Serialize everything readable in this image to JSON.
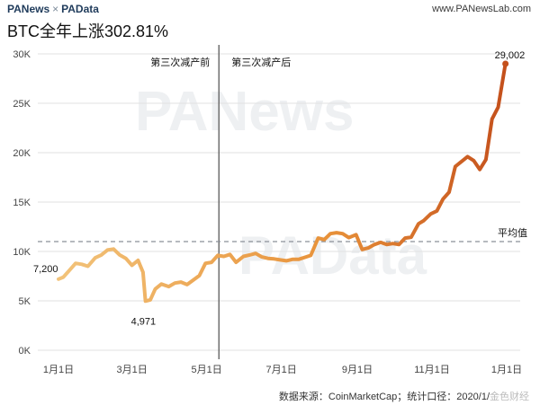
{
  "header": {
    "brand_left": "PANews",
    "brand_sep": "×",
    "brand_right": "PAData",
    "site": "www.PANewsLab.com"
  },
  "footer": {
    "source": "数据来源：CoinMarketCap；统计口径：2020/1/",
    "watermark": "金色财经"
  },
  "watermarks": [
    "PANews",
    "PAData"
  ],
  "chart_data": {
    "type": "line",
    "title": "BTC全年上涨302.81%",
    "xlabel": "",
    "ylabel": "",
    "ylim": [
      0,
      30000
    ],
    "yticks": [
      0,
      5000,
      10000,
      15000,
      20000,
      25000,
      30000
    ],
    "ytick_labels": [
      "0K",
      "5K",
      "10K",
      "15K",
      "20K",
      "25K",
      "30K"
    ],
    "xticks": [
      "2020-01-01",
      "2020-03-01",
      "2020-05-01",
      "2020-07-01",
      "2020-09-01",
      "2020-11-01",
      "2021-01-01"
    ],
    "xtick_labels": [
      "1月1日",
      "3月1日",
      "5月1日",
      "7月1日",
      "9月1日",
      "11月1日",
      "1月1日"
    ],
    "grid": true,
    "reference_line": {
      "y": 11000,
      "label": "平均值",
      "style": "dashed"
    },
    "halving_line": {
      "x": "2020-05-11",
      "label_before": "第三次减产前",
      "label_after": "第三次减产后"
    },
    "annotations": [
      {
        "x": "2020-01-01",
        "y": 7200,
        "label": "7,200"
      },
      {
        "x": "2020-03-12",
        "y": 4971,
        "label": "4,971"
      },
      {
        "x": "2020-12-31",
        "y": 29002,
        "label": "29,002"
      }
    ],
    "color_gradient": [
      "#f2c37a",
      "#e8923a",
      "#c4501c"
    ],
    "series": [
      {
        "x": [
          "2020-01-01",
          "2020-01-05",
          "2020-01-10",
          "2020-01-15",
          "2020-01-20",
          "2020-01-25",
          "2020-01-31",
          "2020-02-05",
          "2020-02-10",
          "2020-02-15",
          "2020-02-20",
          "2020-02-25",
          "2020-03-01",
          "2020-03-06",
          "2020-03-10",
          "2020-03-12",
          "2020-03-16",
          "2020-03-20",
          "2020-03-25",
          "2020-03-31",
          "2020-04-05",
          "2020-04-10",
          "2020-04-15",
          "2020-04-20",
          "2020-04-25",
          "2020-04-30",
          "2020-05-05",
          "2020-05-10",
          "2020-05-15",
          "2020-05-20",
          "2020-05-25",
          "2020-05-31",
          "2020-06-05",
          "2020-06-10",
          "2020-06-15",
          "2020-06-20",
          "2020-06-25",
          "2020-06-30",
          "2020-07-05",
          "2020-07-10",
          "2020-07-15",
          "2020-07-20",
          "2020-07-25",
          "2020-07-31",
          "2020-08-05",
          "2020-08-10",
          "2020-08-15",
          "2020-08-20",
          "2020-08-25",
          "2020-08-31",
          "2020-09-05",
          "2020-09-10",
          "2020-09-15",
          "2020-09-20",
          "2020-09-25",
          "2020-09-30",
          "2020-10-05",
          "2020-10-10",
          "2020-10-15",
          "2020-10-21",
          "2020-10-25",
          "2020-10-31",
          "2020-11-05",
          "2020-11-10",
          "2020-11-15",
          "2020-11-20",
          "2020-11-25",
          "2020-11-30",
          "2020-12-05",
          "2020-12-10",
          "2020-12-15",
          "2020-12-20",
          "2020-12-25",
          "2020-12-31"
        ],
        "values": [
          7200,
          7400,
          8100,
          8800,
          8700,
          8500,
          9350,
          9650,
          10150,
          10250,
          9650,
          9300,
          8600,
          9100,
          7900,
          4971,
          5100,
          6200,
          6700,
          6450,
          6800,
          6900,
          6650,
          7100,
          7550,
          8800,
          8900,
          9600,
          9500,
          9700,
          8900,
          9500,
          9650,
          9800,
          9450,
          9300,
          9250,
          9150,
          9050,
          9200,
          9200,
          9400,
          9600,
          11350,
          11200,
          11800,
          11900,
          11800,
          11400,
          11700,
          10200,
          10350,
          10700,
          10920,
          10700,
          10800,
          10700,
          11350,
          11450,
          12800,
          13100,
          13800,
          14100,
          15300,
          16000,
          18600,
          19100,
          19600,
          19200,
          18300,
          19300,
          23400,
          24600,
          29002
        ]
      }
    ]
  }
}
